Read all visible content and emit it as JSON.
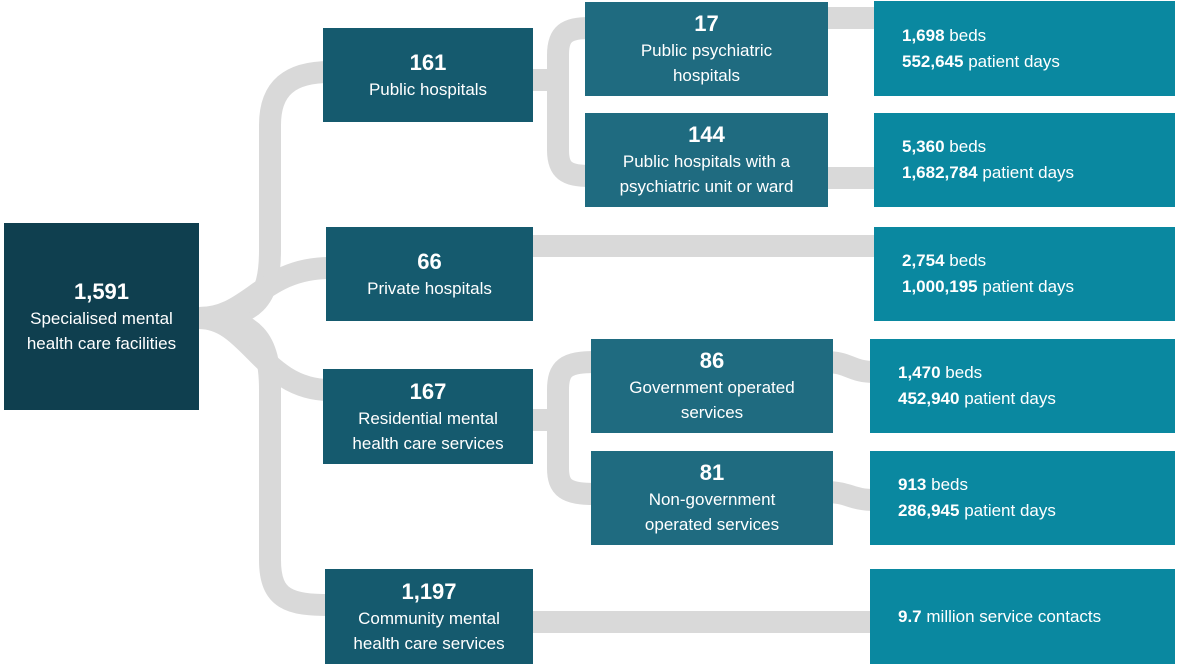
{
  "nodes": [
    {
      "count": "1,591",
      "label": [
        "Specialised mental",
        "health care facilities"
      ]
    },
    {
      "count": "161",
      "label": [
        "Public hospitals"
      ]
    },
    {
      "count": "66",
      "label": [
        "Private hospitals"
      ]
    },
    {
      "count": "167",
      "label": [
        "Residential mental",
        "health care services"
      ]
    },
    {
      "count": "1,197",
      "label": [
        "Community mental",
        "health care services"
      ]
    },
    {
      "count": "17",
      "label": [
        "Public psychiatric",
        "hospitals"
      ]
    },
    {
      "count": "144",
      "label": [
        "Public hospitals with a",
        "psychiatric unit or ward"
      ]
    },
    {
      "count": "86",
      "label": [
        "Government operated",
        "services"
      ]
    },
    {
      "count": "81",
      "label": [
        "Non-government",
        "operated services"
      ]
    }
  ],
  "details": [
    {
      "lines": [
        {
          "figure": "1,698",
          "unit": "beds"
        },
        {
          "figure": "552,645",
          "unit": "patient days"
        }
      ]
    },
    {
      "lines": [
        {
          "figure": "5,360",
          "unit": "beds"
        },
        {
          "figure": "1,682,784",
          "unit": "patient days"
        }
      ]
    },
    {
      "lines": [
        {
          "figure": "2,754",
          "unit": "beds"
        },
        {
          "figure": "1,000,195",
          "unit": "patient days"
        }
      ]
    },
    {
      "lines": [
        {
          "figure": "1,470",
          "unit": "beds"
        },
        {
          "figure": "452,940",
          "unit": "patient days"
        }
      ]
    },
    {
      "lines": [
        {
          "figure": "913",
          "unit": "beds"
        },
        {
          "figure": "286,945",
          "unit": "patient days"
        }
      ]
    },
    {
      "lines": [
        {
          "figure": "9.7",
          "unit": "million service contacts"
        }
      ]
    }
  ]
}
